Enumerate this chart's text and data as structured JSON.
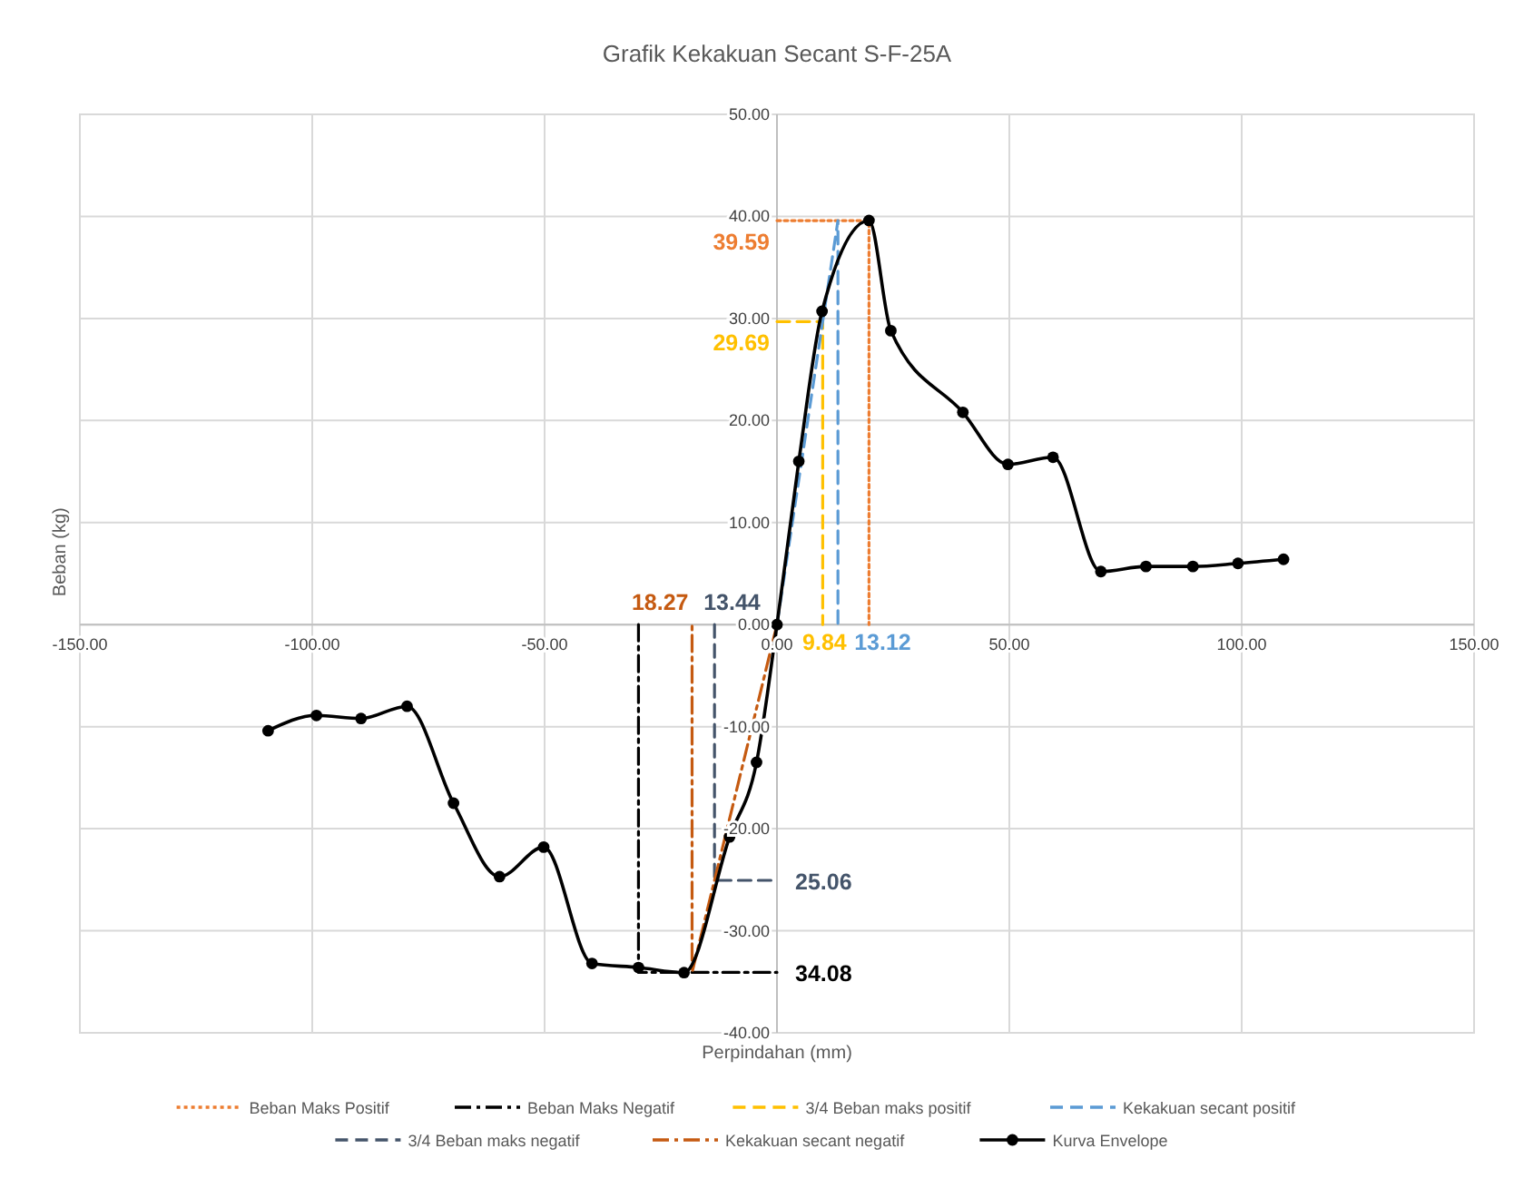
{
  "chart_data": {
    "type": "line",
    "title": "Grafik Kekakuan Secant S-F-25A",
    "xlabel": "Perpindahan (mm)",
    "ylabel": "Beban (kg)",
    "xlim": [
      -150,
      150
    ],
    "xticks": [
      {
        "value": -150,
        "label": "-150.00"
      },
      {
        "value": -100,
        "label": "-100.00"
      },
      {
        "value": -50,
        "label": "-50.00"
      },
      {
        "value": 0,
        "label": "0.00"
      },
      {
        "value": 50,
        "label": "50.00"
      },
      {
        "value": 100,
        "label": "100.00"
      },
      {
        "value": 150,
        "label": "150.00"
      }
    ],
    "ylim": [
      -40,
      50
    ],
    "yticks": [
      {
        "value": -40,
        "label": "-40.00"
      },
      {
        "value": -30,
        "label": "-30.00"
      },
      {
        "value": -20,
        "label": "-20.00"
      },
      {
        "value": -10,
        "label": "-10.00"
      },
      {
        "value": 0,
        "label": "0.00"
      },
      {
        "value": 10,
        "label": "10.00"
      },
      {
        "value": 20,
        "label": "20.00"
      },
      {
        "value": 30,
        "label": "30.00"
      },
      {
        "value": 40,
        "label": "40.00"
      },
      {
        "value": 50,
        "label": "50.00"
      }
    ],
    "grid": true,
    "legend": "bottom",
    "series": [
      {
        "name": "Beban Maks Positif",
        "color": "#ed7d31",
        "line_style": "dotted",
        "marker": "none",
        "x": [
          0,
          19.8,
          19.8
        ],
        "values": [
          39.59,
          39.59,
          0
        ]
      },
      {
        "name": "Beban Maks Negatif",
        "color": "#000000",
        "line_style": "dashdot",
        "marker": "none",
        "x": [
          -29.8,
          -29.8,
          0
        ],
        "values": [
          0,
          -34.08,
          -34.08
        ]
      },
      {
        "name": "3/4 Beban maks positif",
        "color": "#ffc000",
        "line_style": "dashed",
        "marker": "none",
        "x": [
          0,
          9.84,
          9.84
        ],
        "values": [
          29.69,
          29.69,
          0
        ]
      },
      {
        "name": "Kekakuan secant positif",
        "color": "#5b9bd5",
        "line_style": "dashed",
        "marker": "none",
        "x": [
          0,
          13.12,
          13.12
        ],
        "values": [
          0,
          39.59,
          0
        ]
      },
      {
        "name": "3/4 Beban maks negatif",
        "color": "#44546a",
        "line_style": "dashed",
        "marker": "none",
        "x": [
          -13.44,
          -13.44,
          0
        ],
        "values": [
          0,
          -25.06,
          -25.06
        ]
      },
      {
        "name": "Kekakuan secant negatif",
        "color": "#c55a11",
        "line_style": "dashdot",
        "marker": "none",
        "x": [
          0,
          -18.27,
          -18.27
        ],
        "values": [
          0,
          -34.08,
          0
        ]
      },
      {
        "name": "Kurva Envelope",
        "color": "#000000",
        "line_style": "solid",
        "marker": "circle",
        "x": [
          -109.5,
          -99.1,
          -89.5,
          -79.6,
          -69.6,
          -59.7,
          -50.2,
          -39.8,
          -29.8,
          -20,
          -10.2,
          -4.4,
          0,
          4.7,
          9.7,
          19.8,
          24.5,
          40,
          49.7,
          59.4,
          69.7,
          79.4,
          89.5,
          99.2,
          109
        ],
        "values": [
          -10.4,
          -8.9,
          -9.2,
          -8,
          -17.5,
          -24.7,
          -21.8,
          -33.2,
          -33.6,
          -34.1,
          -20.8,
          -13.5,
          0,
          16,
          30.7,
          39.6,
          28.8,
          20.8,
          15.7,
          16.4,
          5.2,
          5.7,
          5.7,
          6,
          6.4
        ]
      }
    ],
    "annotations": [
      {
        "text": "39.59",
        "x": 0,
        "y": 39.59
      },
      {
        "text": "29.69",
        "x": 0,
        "y": 29.69
      },
      {
        "text": "9.84",
        "x": 9.84,
        "y": 0
      },
      {
        "text": "13.12",
        "x": 13.12,
        "y": 0
      },
      {
        "text": "18.27",
        "x": -18.27,
        "y": 0
      },
      {
        "text": "13.44",
        "x": -13.44,
        "y": 0
      },
      {
        "text": "25.06",
        "x": 0,
        "y": -25.06
      },
      {
        "text": "34.08",
        "x": 0,
        "y": -34.08
      }
    ]
  }
}
